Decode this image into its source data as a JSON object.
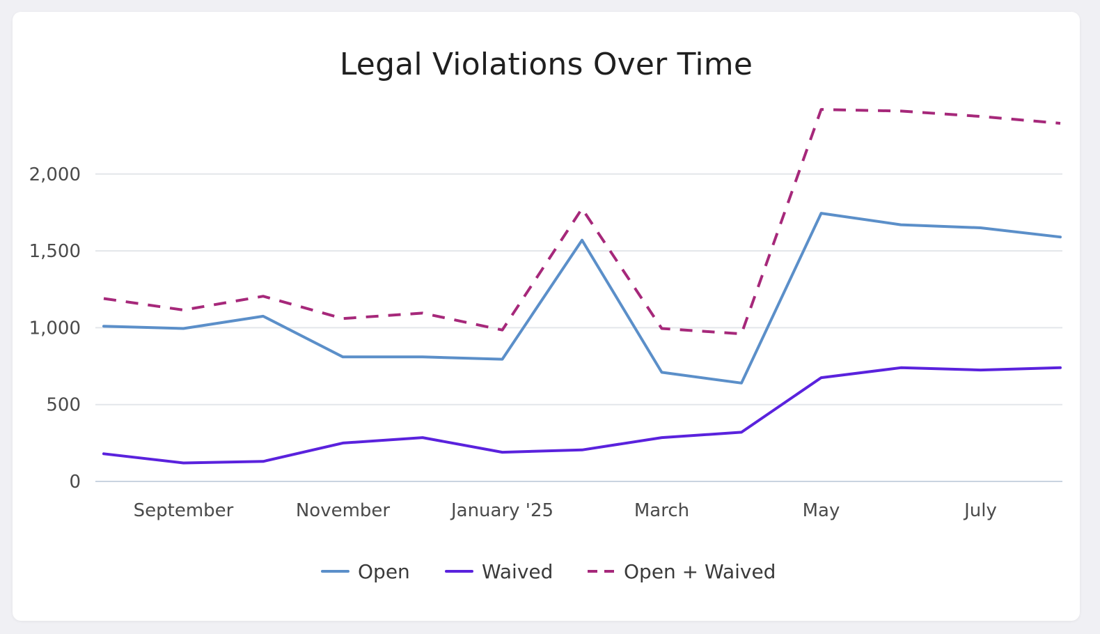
{
  "chart_data": {
    "type": "line",
    "title": "Legal Violations Over Time",
    "xlabel": "",
    "ylabel": "",
    "x": [
      "2024-08",
      "2024-09",
      "2024-10",
      "2024-11",
      "2024-12",
      "2025-01",
      "2025-02",
      "2025-03",
      "2025-04",
      "2025-05",
      "2025-06",
      "2025-07",
      "2025-08"
    ],
    "x_tick_labels": [
      "September",
      "November",
      "January '25",
      "March",
      "May",
      "July"
    ],
    "x_tick_positions": [
      "2024-09",
      "2024-11",
      "2025-01",
      "2025-03",
      "2025-05",
      "2025-07"
    ],
    "y_ticks": [
      0,
      500,
      1000,
      1500,
      2000
    ],
    "y_tick_labels": [
      "0",
      "500",
      "1,000",
      "1,500",
      "2,000"
    ],
    "ylim": [
      0,
      2500
    ],
    "grid": true,
    "legend_position": "bottom",
    "series": [
      {
        "name": "Open",
        "color": "#5b8fc9",
        "style": "solid",
        "values": [
          1010,
          995,
          1075,
          810,
          810,
          795,
          1570,
          710,
          640,
          1745,
          1670,
          1650,
          1590
        ]
      },
      {
        "name": "Waived",
        "color": "#5a22dd",
        "style": "solid",
        "values": [
          180,
          120,
          130,
          250,
          285,
          190,
          205,
          285,
          320,
          675,
          740,
          725,
          740
        ]
      },
      {
        "name": "Open + Waived",
        "color": "#a6287a",
        "style": "dashed",
        "values": [
          1190,
          1115,
          1205,
          1060,
          1095,
          985,
          1775,
          995,
          960,
          2420,
          2410,
          2375,
          2330
        ]
      }
    ]
  }
}
